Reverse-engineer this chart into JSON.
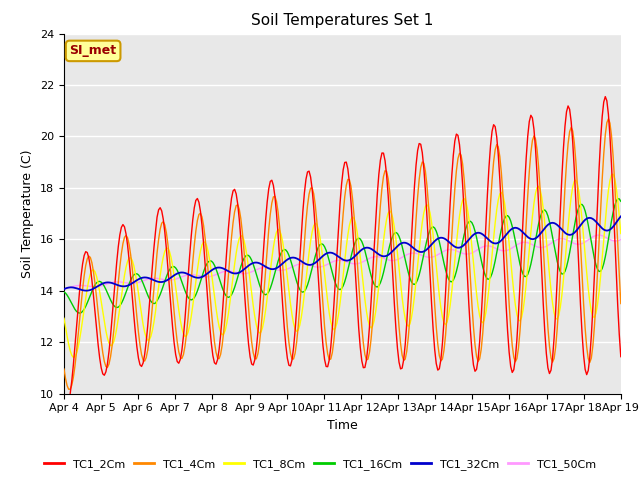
{
  "title": "Soil Temperatures Set 1",
  "xlabel": "Time",
  "ylabel": "Soil Temperature (C)",
  "ylim": [
    10,
    24
  ],
  "x_tick_labels": [
    "Apr 4",
    "Apr 5",
    "Apr 6",
    "Apr 7",
    "Apr 8",
    "Apr 9",
    "Apr 10",
    "Apr 11",
    "Apr 12",
    "Apr 13",
    "Apr 14",
    "Apr 15",
    "Apr 16",
    "Apr 17",
    "Apr 18",
    "Apr 19"
  ],
  "series_colors": {
    "TC1_2Cm": "#ff0000",
    "TC1_4Cm": "#ff8800",
    "TC1_8Cm": "#ffff00",
    "TC1_16Cm": "#00cc00",
    "TC1_32Cm": "#0000cc",
    "TC1_50Cm": "#ff99ff"
  },
  "legend_label": "SI_met",
  "legend_bg": "#ffff99",
  "legend_border": "#cc9900",
  "background_plot": "#e8e8e8",
  "background_fig": "#ffffff",
  "grid_color": "#ffffff",
  "title_fontsize": 11,
  "axis_fontsize": 9,
  "tick_fontsize": 8
}
